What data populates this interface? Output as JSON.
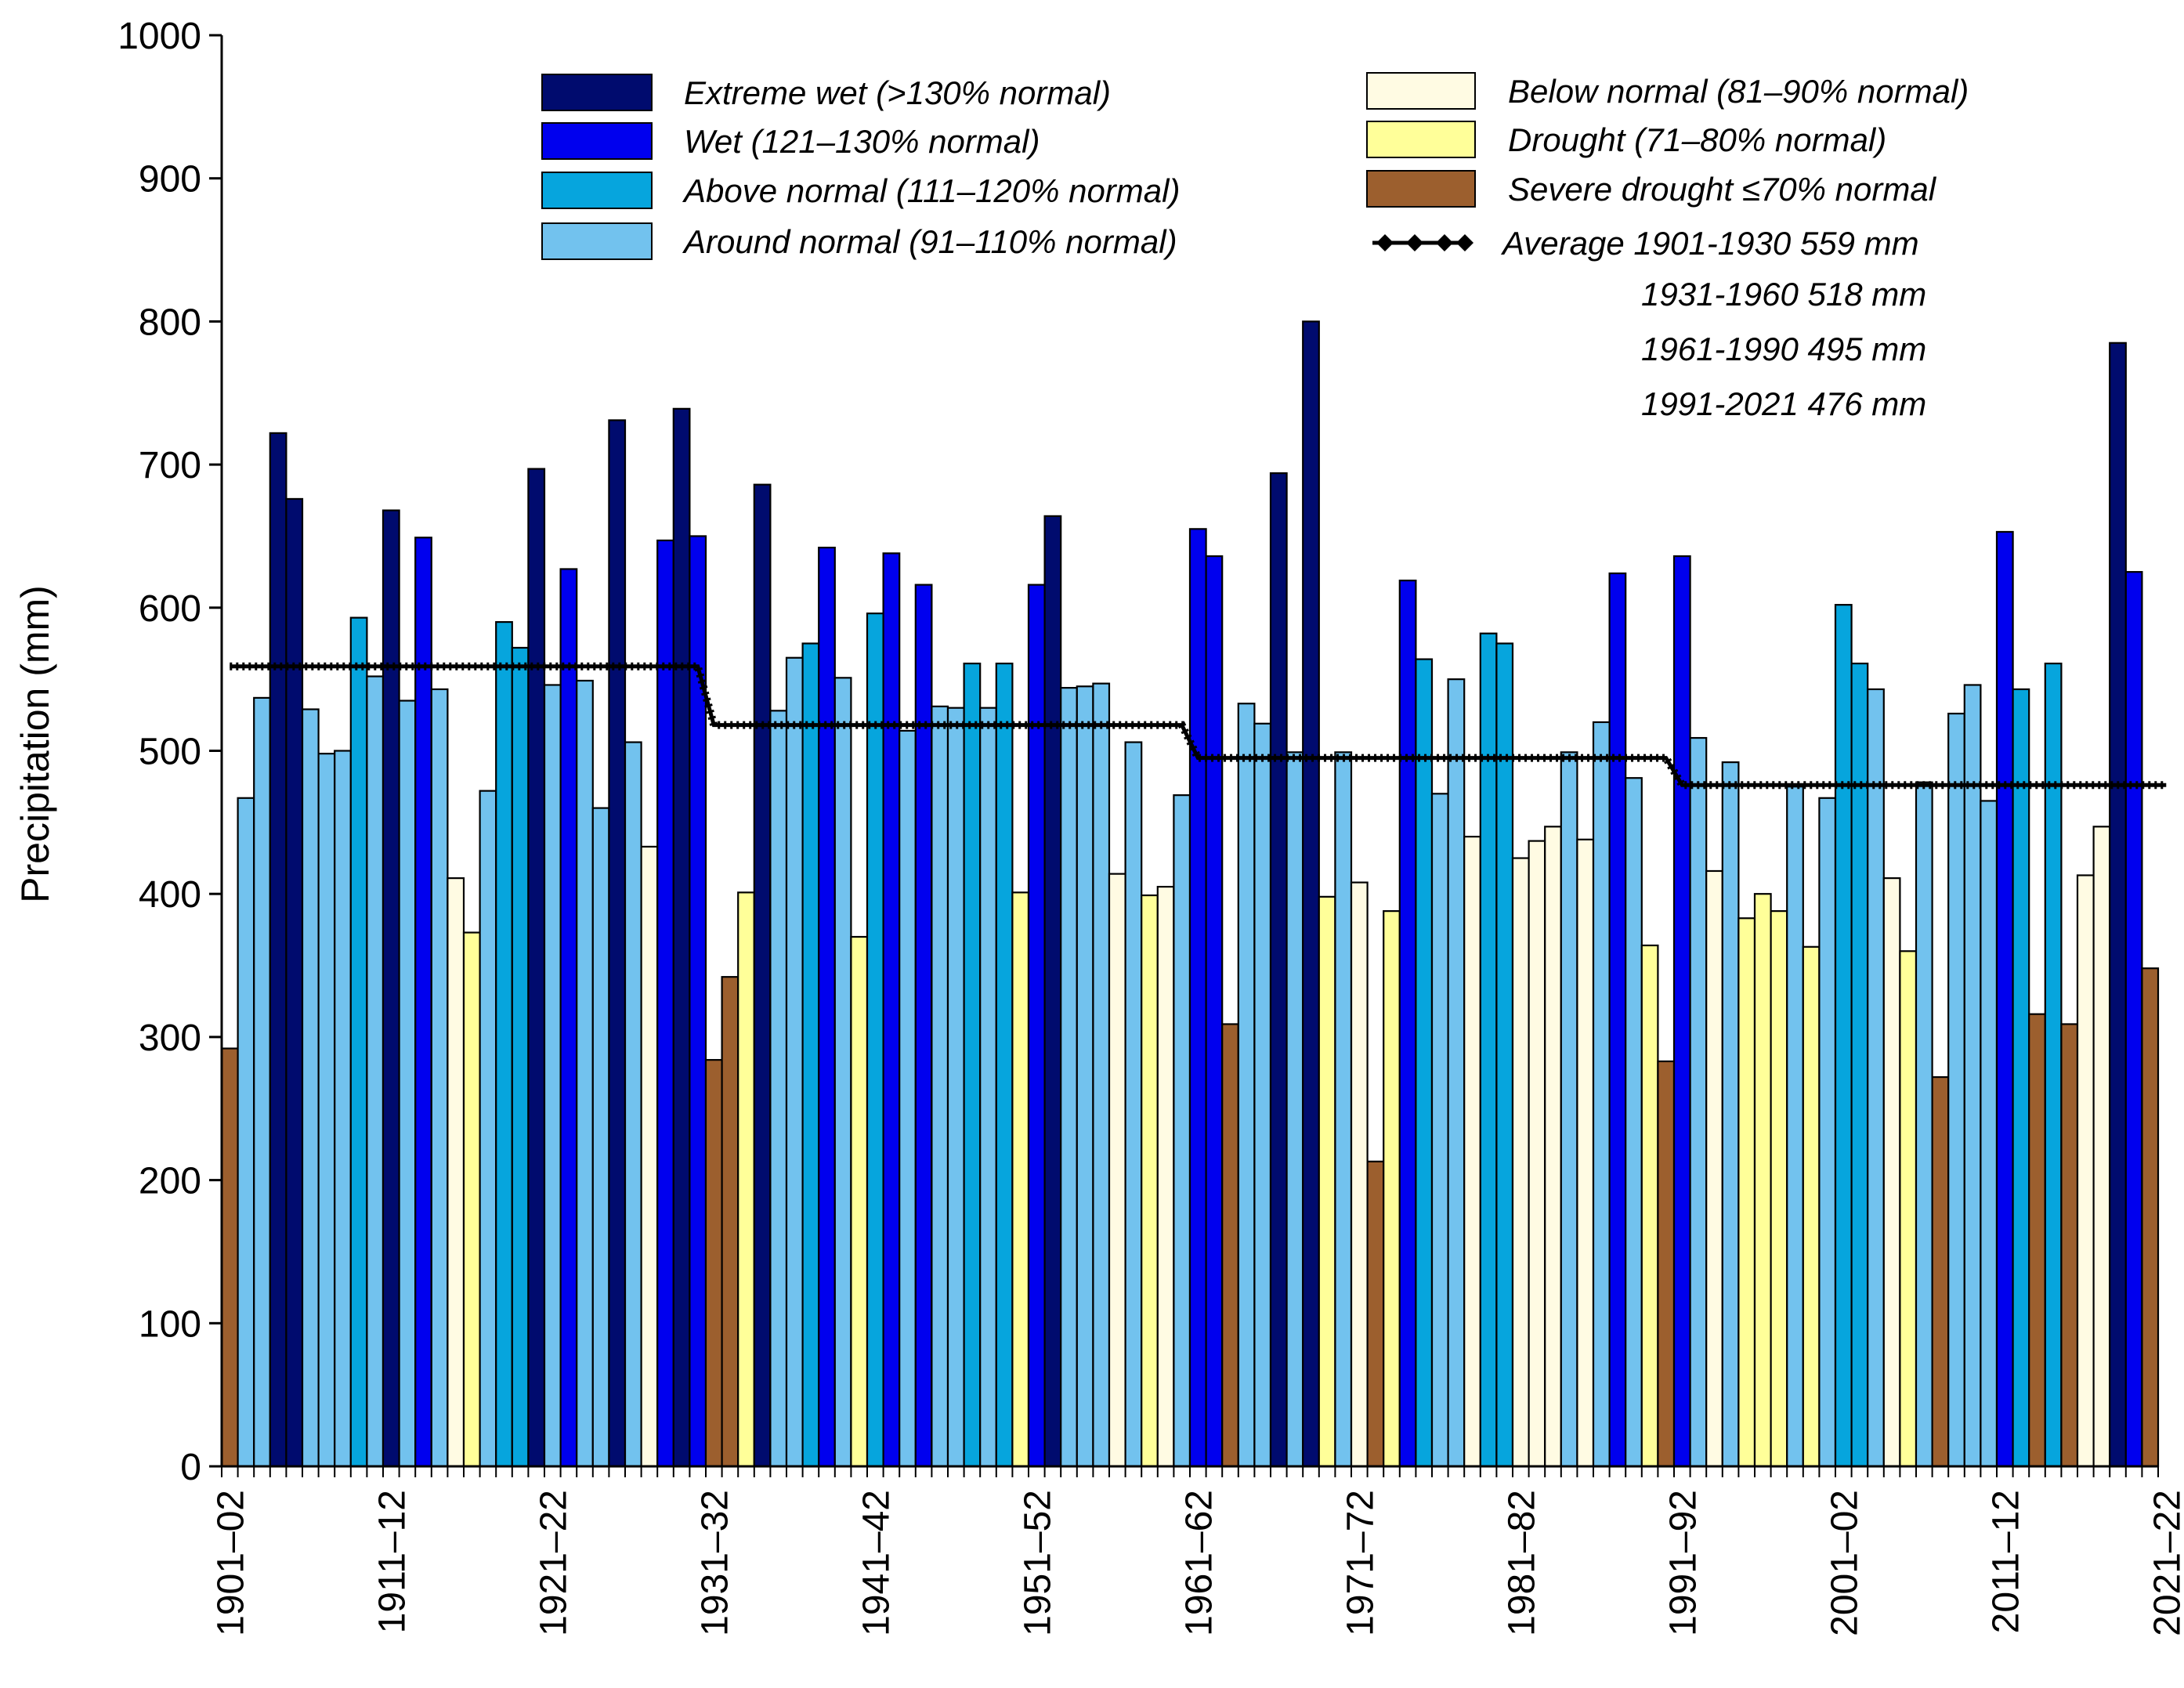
{
  "chart_data": {
    "type": "bar",
    "ylabel": "Precipitation (mm)",
    "ylim": [
      0,
      1000
    ],
    "yticks": [
      0,
      100,
      200,
      300,
      400,
      500,
      600,
      700,
      800,
      900,
      1000
    ],
    "xtick_labels": [
      "1901–02",
      "1911–12",
      "1921–22",
      "1931–32",
      "1941–42",
      "1951–52",
      "1961–62",
      "1971–72",
      "1981–82",
      "1991–92",
      "2001–02",
      "2011–12",
      "2021–22"
    ],
    "first_season_start_year": 1901,
    "legend_position": "top",
    "categories": {
      "extreme_wet": {
        "label": "Extreme wet (>130% normal)",
        "color": "#000b6e"
      },
      "wet": {
        "label": "Wet (121–130% normal)",
        "color": "#0000ee"
      },
      "above_normal": {
        "label": "Above normal (111–120% normal)",
        "color": "#06a5dd"
      },
      "around_normal": {
        "label": "Around normal (91–110% normal)",
        "color": "#72c2ee"
      },
      "below_normal": {
        "label": "Below normal (81–90% normal)",
        "color": "#fffbe3"
      },
      "drought": {
        "label": "Drought (71–80% normal)",
        "color": "#ffff99"
      },
      "severe_drought": {
        "label": "Severe drought ≤70% normal",
        "color": "#9c5f2e"
      }
    },
    "values": [
      292,
      467,
      537,
      722,
      676,
      529,
      498,
      500,
      593,
      552,
      668,
      535,
      649,
      543,
      411,
      373,
      472,
      590,
      572,
      697,
      546,
      627,
      549,
      460,
      731,
      506,
      433,
      647,
      739,
      650,
      284,
      342,
      401,
      686,
      528,
      565,
      575,
      642,
      551,
      370,
      596,
      638,
      514,
      616,
      531,
      530,
      561,
      530,
      561,
      401,
      616,
      664,
      544,
      545,
      547,
      414,
      506,
      399,
      405,
      469,
      655,
      636,
      309,
      533,
      519,
      694,
      499,
      800,
      398,
      499,
      408,
      213,
      388,
      619,
      564,
      470,
      550,
      440,
      582,
      575,
      425,
      437,
      447,
      499,
      438,
      520,
      624,
      481,
      364,
      283,
      636,
      509,
      416,
      492,
      383,
      400,
      388,
      475,
      363,
      467,
      602,
      561,
      543,
      411,
      360,
      478,
      272,
      526,
      546,
      465,
      653,
      543,
      316,
      561,
      309,
      413,
      447,
      785,
      625,
      348
    ],
    "category_per_bar": [
      "severe_drought",
      "around_normal",
      "around_normal",
      "extreme_wet",
      "extreme_wet",
      "around_normal",
      "around_normal",
      "around_normal",
      "above_normal",
      "around_normal",
      "extreme_wet",
      "around_normal",
      "wet",
      "around_normal",
      "below_normal",
      "drought",
      "around_normal",
      "above_normal",
      "above_normal",
      "extreme_wet",
      "around_normal",
      "wet",
      "around_normal",
      "around_normal",
      "extreme_wet",
      "around_normal",
      "below_normal",
      "wet",
      "extreme_wet",
      "wet",
      "severe_drought",
      "severe_drought",
      "drought",
      "extreme_wet",
      "around_normal",
      "around_normal",
      "above_normal",
      "wet",
      "around_normal",
      "drought",
      "above_normal",
      "wet",
      "around_normal",
      "wet",
      "around_normal",
      "around_normal",
      "above_normal",
      "around_normal",
      "above_normal",
      "drought",
      "wet",
      "extreme_wet",
      "around_normal",
      "around_normal",
      "around_normal",
      "below_normal",
      "around_normal",
      "drought",
      "below_normal",
      "around_normal",
      "wet",
      "wet",
      "severe_drought",
      "around_normal",
      "around_normal",
      "extreme_wet",
      "around_normal",
      "extreme_wet",
      "drought",
      "around_normal",
      "below_normal",
      "severe_drought",
      "drought",
      "wet",
      "above_normal",
      "around_normal",
      "around_normal",
      "below_normal",
      "above_normal",
      "above_normal",
      "below_normal",
      "below_normal",
      "below_normal",
      "around_normal",
      "below_normal",
      "around_normal",
      "wet",
      "around_normal",
      "drought",
      "severe_drought",
      "wet",
      "around_normal",
      "below_normal",
      "around_normal",
      "drought",
      "drought",
      "drought",
      "around_normal",
      "drought",
      "around_normal",
      "above_normal",
      "above_normal",
      "around_normal",
      "below_normal",
      "drought",
      "around_normal",
      "severe_drought",
      "around_normal",
      "around_normal",
      "around_normal",
      "wet",
      "above_normal",
      "severe_drought",
      "above_normal",
      "severe_drought",
      "below_normal",
      "below_normal",
      "extreme_wet",
      "wet",
      "severe_drought"
    ],
    "averages": {
      "legend_label": "Average 1901-1930   559 mm",
      "color": "#000000",
      "periods": [
        {
          "label": "1901-1930",
          "start_year": 1901,
          "end_year": 1930,
          "value": 559
        },
        {
          "label": "1931-1960",
          "start_year": 1931,
          "end_year": 1960,
          "value": 518
        },
        {
          "label": "1961-1990",
          "start_year": 1961,
          "end_year": 1990,
          "value": 495
        },
        {
          "label": "1991-2021",
          "start_year": 1991,
          "end_year": 2021,
          "value": 476
        }
      ],
      "extra_legend_lines": [
        "1931-1960   518 mm",
        "1961-1990   495 mm",
        "1991-2021   476 mm"
      ]
    }
  }
}
